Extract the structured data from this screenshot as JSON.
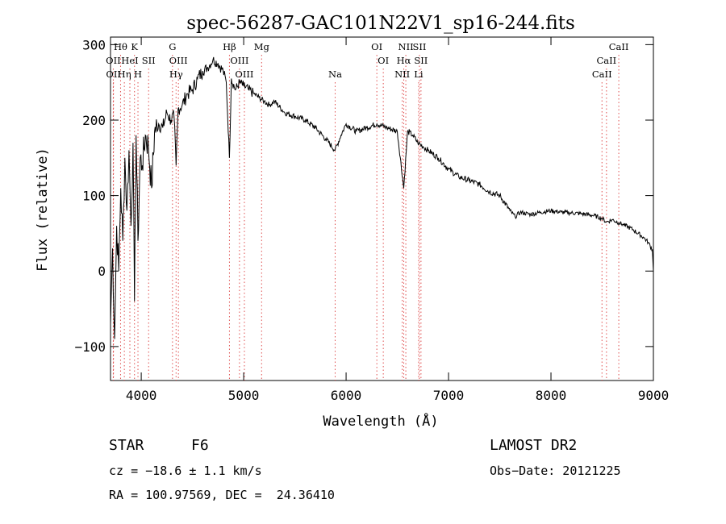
{
  "chart_data": {
    "type": "line",
    "title": "spec-56287-GAC101N22V1_sp16-244.fits",
    "xlabel": "Wavelength (Å)",
    "ylabel": "Flux (relative)",
    "xlim": [
      3700,
      9000
    ],
    "ylim": [
      -145,
      310
    ],
    "xticks": [
      4000,
      5000,
      6000,
      7000,
      8000,
      9000
    ],
    "yticks": [
      -100,
      0,
      100,
      200,
      300
    ],
    "grid": false,
    "series": [
      {
        "x": [
          3700,
          3720,
          3740,
          3760,
          3780,
          3800,
          3820,
          3840,
          3860,
          3880,
          3900,
          3920,
          3934,
          3950,
          3968,
          3990,
          4010,
          4040,
          4070,
          4101,
          4130,
          4170,
          4210,
          4250,
          4290,
          4320,
          4340,
          4360,
          4400,
          4450,
          4500,
          4550,
          4600,
          4650,
          4700,
          4750,
          4800,
          4830,
          4861,
          4880,
          4920,
          4960,
          5000,
          5050,
          5100,
          5150,
          5200,
          5250,
          5300,
          5400,
          5500,
          5600,
          5700,
          5800,
          5893,
          5950,
          6000,
          6100,
          6200,
          6300,
          6400,
          6500,
          6563,
          6600,
          6650,
          6700,
          6750,
          6800,
          6900,
          7000,
          7100,
          7200,
          7300,
          7400,
          7500,
          7600,
          7650,
          7700,
          7800,
          7900,
          8000,
          8100,
          8200,
          8300,
          8400,
          8498,
          8542,
          8600,
          8662,
          8700,
          8800,
          8900,
          8950,
          8990,
          9000
        ],
        "y": [
          -70,
          30,
          -90,
          60,
          0,
          110,
          40,
          150,
          80,
          160,
          60,
          170,
          -40,
          180,
          40,
          150,
          140,
          180,
          165,
          110,
          185,
          195,
          190,
          210,
          200,
          205,
          140,
          215,
          220,
          235,
          240,
          255,
          265,
          270,
          280,
          275,
          265,
          250,
          150,
          255,
          240,
          250,
          245,
          240,
          235,
          230,
          225,
          220,
          225,
          210,
          205,
          200,
          190,
          175,
          160,
          180,
          195,
          185,
          190,
          195,
          190,
          185,
          110,
          185,
          180,
          170,
          165,
          160,
          150,
          135,
          125,
          120,
          115,
          105,
          100,
          80,
          72,
          78,
          75,
          78,
          80,
          78,
          77,
          76,
          74,
          70,
          65,
          68,
          64,
          62,
          55,
          45,
          38,
          28,
          0
        ]
      }
    ],
    "line_markers": [
      {
        "label": "Hθ",
        "x": 3798,
        "row": 1
      },
      {
        "label": "K",
        "x": 3934,
        "row": 1
      },
      {
        "label": "G",
        "x": 4305,
        "row": 1
      },
      {
        "label": "Hβ",
        "x": 4861,
        "row": 1
      },
      {
        "label": "Mg",
        "x": 5175,
        "row": 1
      },
      {
        "label": "OI",
        "x": 6300,
        "row": 1
      },
      {
        "label": "NII",
        "x": 6583,
        "row": 1
      },
      {
        "label": "SII",
        "x": 6716,
        "row": 1
      },
      {
        "label": "CaII",
        "x": 8662,
        "row": 1
      },
      {
        "label": "OII",
        "x": 3727,
        "row": 2
      },
      {
        "label": "HeI",
        "x": 3889,
        "row": 2
      },
      {
        "label": "SII",
        "x": 4072,
        "row": 2
      },
      {
        "label": "OIII",
        "x": 4363,
        "row": 2
      },
      {
        "label": "OIII",
        "x": 4959,
        "row": 2
      },
      {
        "label": "OI",
        "x": 6363,
        "row": 2
      },
      {
        "label": "Hα",
        "x": 6563,
        "row": 2
      },
      {
        "label": "SII",
        "x": 6731,
        "row": 2
      },
      {
        "label": "CaII",
        "x": 8542,
        "row": 2
      },
      {
        "label": "OII",
        "x": 3729,
        "row": 3
      },
      {
        "label": "Hη",
        "x": 3835,
        "row": 3
      },
      {
        "label": "H",
        "x": 3968,
        "row": 3
      },
      {
        "label": "Hγ",
        "x": 4340,
        "row": 3
      },
      {
        "label": "OIII",
        "x": 5007,
        "row": 3
      },
      {
        "label": "Na",
        "x": 5893,
        "row": 3
      },
      {
        "label": "NII",
        "x": 6548,
        "row": 3
      },
      {
        "label": "Li",
        "x": 6708,
        "row": 3
      },
      {
        "label": "CaII",
        "x": 8498,
        "row": 3
      }
    ]
  },
  "info": {
    "class_label": "STAR",
    "subclass": "F6",
    "survey": "LAMOST DR2",
    "cz": "cz = −18.6 ± 1.1 km/s",
    "obs_date": "Obs−Date: 20121225",
    "coords": "RA = 100.97569, DEC =  24.36410"
  }
}
